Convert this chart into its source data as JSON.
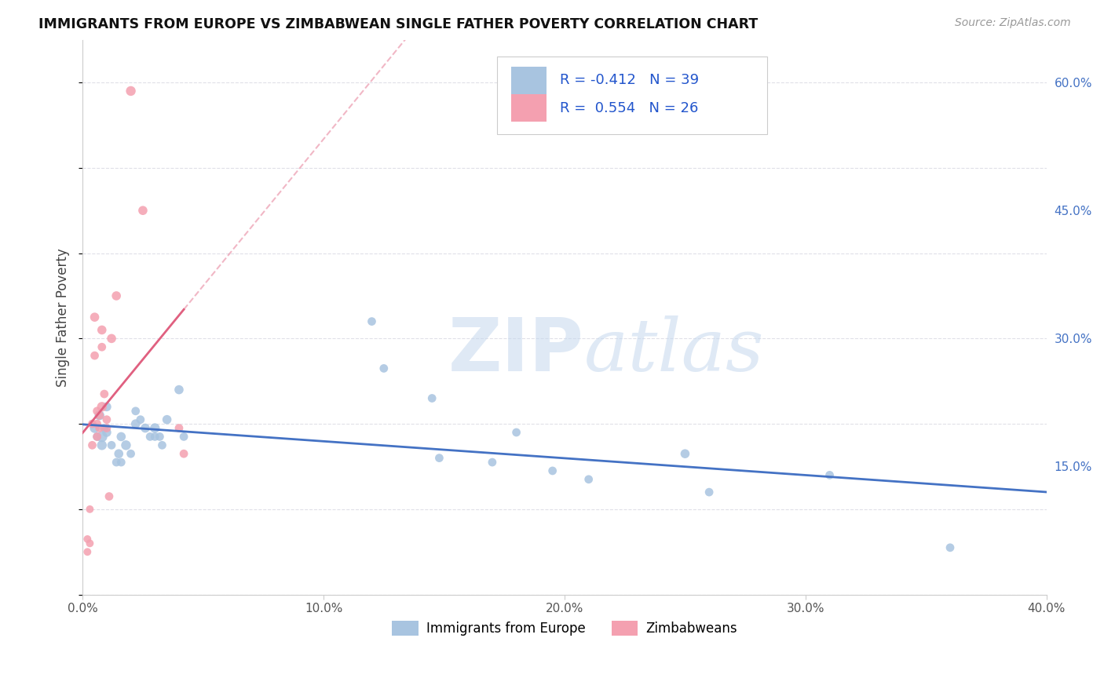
{
  "title": "IMMIGRANTS FROM EUROPE VS ZIMBABWEAN SINGLE FATHER POVERTY CORRELATION CHART",
  "source": "Source: ZipAtlas.com",
  "ylabel": "Single Father Poverty",
  "xlim": [
    0.0,
    0.4
  ],
  "ylim": [
    0.0,
    0.65
  ],
  "xtick_labels": [
    "0.0%",
    "10.0%",
    "20.0%",
    "30.0%",
    "40.0%"
  ],
  "xtick_vals": [
    0.0,
    0.1,
    0.2,
    0.3,
    0.4
  ],
  "ytick_labels_right": [
    "60.0%",
    "45.0%",
    "30.0%",
    "15.0%"
  ],
  "ytick_vals": [
    0.6,
    0.45,
    0.3,
    0.15
  ],
  "legend_label1": "Immigrants from Europe",
  "legend_label2": "Zimbabweans",
  "blue_color": "#a8c4e0",
  "pink_color": "#f4a0b0",
  "blue_line_color": "#4472c4",
  "pink_line_color": "#e06080",
  "R_blue": -0.412,
  "N_blue": 39,
  "R_pink": 0.554,
  "N_pink": 26,
  "blue_points_x": [
    0.005,
    0.006,
    0.007,
    0.008,
    0.008,
    0.009,
    0.01,
    0.01,
    0.012,
    0.014,
    0.015,
    0.016,
    0.016,
    0.018,
    0.02,
    0.022,
    0.022,
    0.024,
    0.026,
    0.028,
    0.03,
    0.03,
    0.032,
    0.033,
    0.035,
    0.04,
    0.042,
    0.12,
    0.125,
    0.145,
    0.148,
    0.17,
    0.18,
    0.195,
    0.21,
    0.25,
    0.26,
    0.31,
    0.36
  ],
  "blue_points_y": [
    0.195,
    0.185,
    0.21,
    0.185,
    0.175,
    0.195,
    0.22,
    0.19,
    0.175,
    0.155,
    0.165,
    0.155,
    0.185,
    0.175,
    0.165,
    0.215,
    0.2,
    0.205,
    0.195,
    0.185,
    0.195,
    0.185,
    0.185,
    0.175,
    0.205,
    0.24,
    0.185,
    0.32,
    0.265,
    0.23,
    0.16,
    0.155,
    0.19,
    0.145,
    0.135,
    0.165,
    0.12,
    0.14,
    0.055
  ],
  "blue_points_size": [
    80,
    60,
    80,
    100,
    80,
    60,
    70,
    70,
    60,
    60,
    70,
    60,
    70,
    80,
    60,
    60,
    70,
    60,
    70,
    60,
    80,
    60,
    60,
    60,
    70,
    70,
    60,
    60,
    60,
    60,
    60,
    60,
    60,
    60,
    60,
    70,
    60,
    60,
    60
  ],
  "pink_points_x": [
    0.002,
    0.002,
    0.003,
    0.003,
    0.004,
    0.004,
    0.005,
    0.005,
    0.006,
    0.006,
    0.006,
    0.007,
    0.007,
    0.008,
    0.008,
    0.008,
    0.009,
    0.01,
    0.01,
    0.011,
    0.012,
    0.014,
    0.02,
    0.025,
    0.04,
    0.042
  ],
  "pink_points_y": [
    0.065,
    0.05,
    0.1,
    0.06,
    0.2,
    0.175,
    0.325,
    0.28,
    0.215,
    0.2,
    0.185,
    0.21,
    0.195,
    0.22,
    0.29,
    0.31,
    0.235,
    0.205,
    0.195,
    0.115,
    0.3,
    0.35,
    0.59,
    0.45,
    0.195,
    0.165
  ],
  "pink_points_size": [
    50,
    50,
    50,
    50,
    60,
    60,
    70,
    60,
    60,
    60,
    60,
    60,
    60,
    80,
    60,
    70,
    60,
    60,
    60,
    60,
    70,
    70,
    80,
    70,
    60,
    60
  ],
  "watermark_zip": "ZIP",
  "watermark_atlas": "atlas",
  "background_color": "#ffffff",
  "grid_color": "#e0e0e8"
}
